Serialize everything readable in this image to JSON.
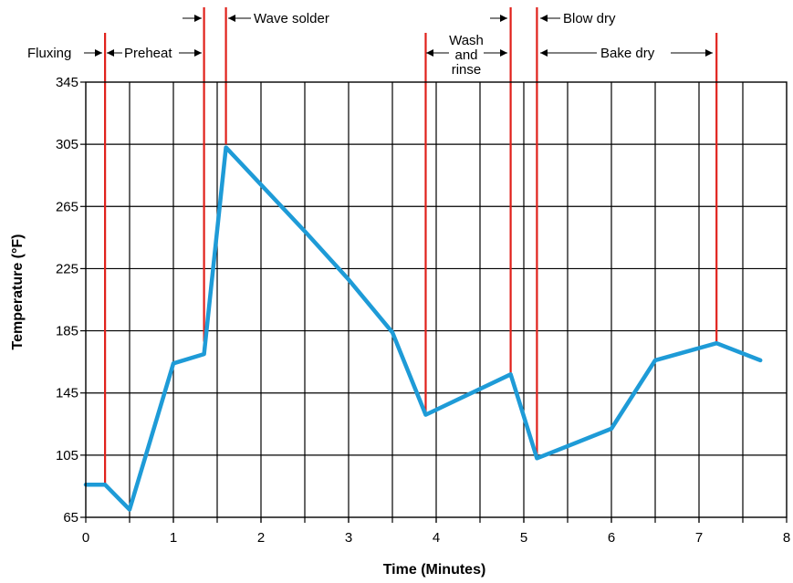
{
  "chart_data": {
    "type": "line",
    "xlabel": "Time (Minutes)",
    "ylabel": "Temperature (°F)",
    "xlim": [
      0,
      8
    ],
    "ylim": [
      65,
      345
    ],
    "x_ticks": [
      0,
      1,
      2,
      3,
      4,
      5,
      6,
      7,
      8
    ],
    "y_ticks": [
      65,
      105,
      145,
      185,
      225,
      265,
      305,
      345
    ],
    "grid": true,
    "series": [
      {
        "x": [
          0,
          0.22,
          0.5,
          1.0,
          1.35,
          1.6,
          2.0,
          2.5,
          3.0,
          3.5,
          3.88,
          4.85,
          5.15,
          6.0,
          6.5,
          7.2,
          7.7
        ],
        "y": [
          86,
          86,
          70,
          164,
          170,
          303,
          279,
          249,
          218,
          184,
          131,
          157,
          103,
          122,
          166,
          177,
          166
        ]
      }
    ],
    "phase_markers": [
      {
        "x": 0.22,
        "top": 87
      },
      {
        "x": 1.35,
        "top": 178
      },
      {
        "x": 1.6,
        "top": 305
      },
      {
        "x": 3.88,
        "top": 131
      },
      {
        "x": 4.85,
        "top": 157
      },
      {
        "x": 5.15,
        "top": 103
      },
      {
        "x": 7.2,
        "top": 178
      }
    ],
    "phases": [
      {
        "label": "Fluxing"
      },
      {
        "label": "Preheat"
      },
      {
        "label": "Wave solder"
      },
      {
        "lines": [
          "Wash",
          "and",
          "rinse"
        ]
      },
      {
        "label": "Blow dry"
      },
      {
        "label": "Bake dry"
      }
    ],
    "colors": {
      "series": "#1e9bd7",
      "markers": "#e0211b",
      "grid": "#000000"
    }
  }
}
